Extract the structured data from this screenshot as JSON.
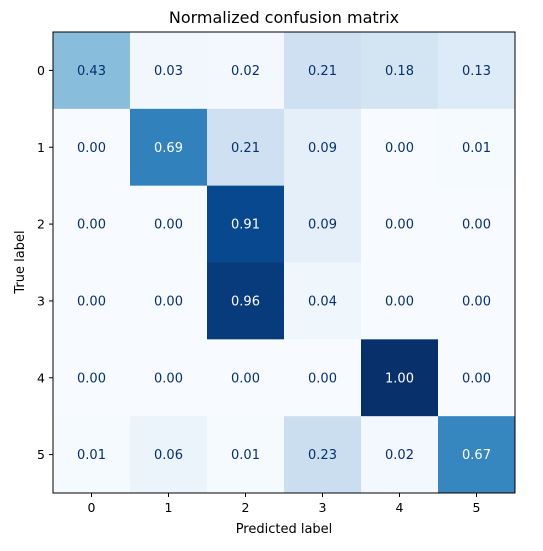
{
  "chart_data": {
    "type": "heatmap",
    "title": "Normalized confusion matrix",
    "xlabel": "Predicted label",
    "ylabel": "True label",
    "x_categories": [
      "0",
      "1",
      "2",
      "3",
      "4",
      "5"
    ],
    "y_categories": [
      "0",
      "1",
      "2",
      "3",
      "4",
      "5"
    ],
    "colormap": "Blues",
    "value_range": [
      0,
      1
    ],
    "grid": false,
    "legend": "none",
    "values": [
      [
        0.43,
        0.03,
        0.02,
        0.21,
        0.18,
        0.13
      ],
      [
        0.0,
        0.69,
        0.21,
        0.09,
        0.0,
        0.01
      ],
      [
        0.0,
        0.0,
        0.91,
        0.09,
        0.0,
        0.0
      ],
      [
        0.0,
        0.0,
        0.96,
        0.04,
        0.0,
        0.0
      ],
      [
        0.0,
        0.0,
        0.0,
        0.0,
        1.0,
        0.0
      ],
      [
        0.01,
        0.06,
        0.01,
        0.23,
        0.02,
        0.67
      ]
    ],
    "cell_labels": [
      [
        "0.43",
        "0.03",
        "0.02",
        "0.21",
        "0.18",
        "0.13"
      ],
      [
        "0.00",
        "0.69",
        "0.21",
        "0.09",
        "0.00",
        "0.01"
      ],
      [
        "0.00",
        "0.00",
        "0.91",
        "0.09",
        "0.00",
        "0.00"
      ],
      [
        "0.00",
        "0.00",
        "0.96",
        "0.04",
        "0.00",
        "0.00"
      ],
      [
        "0.00",
        "0.00",
        "0.00",
        "0.00",
        "1.00",
        "0.00"
      ],
      [
        "0.01",
        "0.06",
        "0.01",
        "0.23",
        "0.02",
        "0.67"
      ]
    ],
    "colors": {
      "low": "#f7fbff",
      "high": "#08306b",
      "text_dark": "#08306b",
      "text_light": "#ffffff"
    }
  }
}
